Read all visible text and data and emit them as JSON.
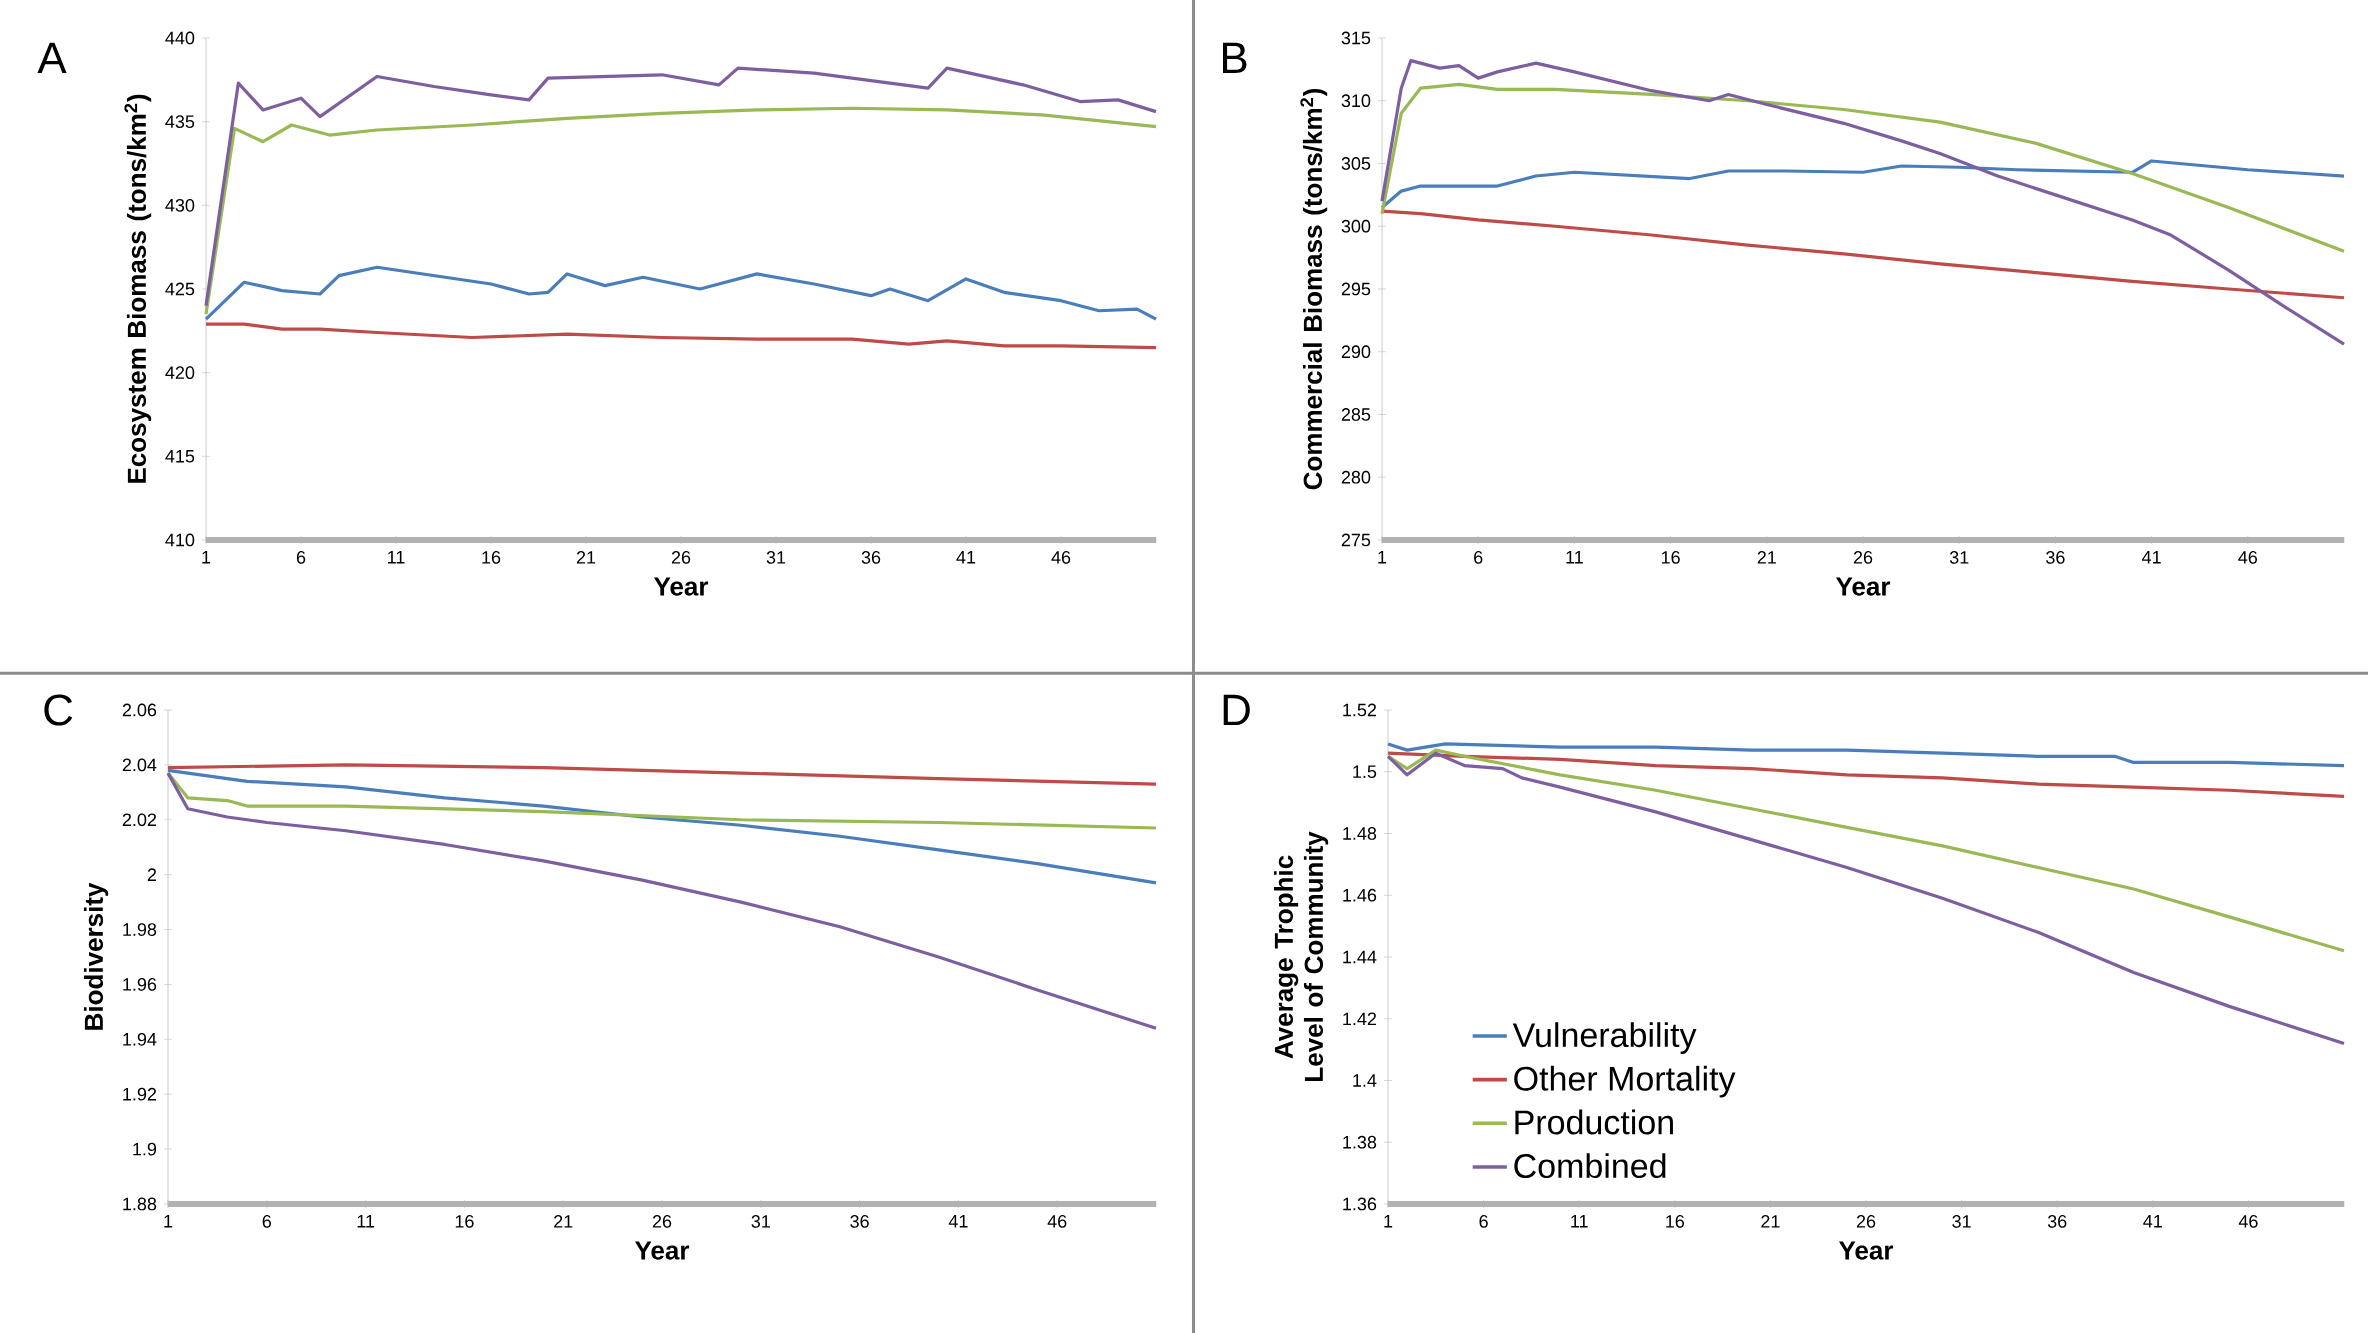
{
  "chart_data": [
    {
      "type": "line",
      "ylabel": "Ecosystem Biomass (tons/km$^{2}$)",
      "xlabel": "Year",
      "annotations": [
        "A"
      ],
      "xlim": [
        1,
        51
      ],
      "xticks": [
        1,
        6,
        11,
        16,
        21,
        26,
        31,
        36,
        41,
        46
      ],
      "ylim": [
        410,
        440
      ],
      "yticks": [
        410,
        415,
        420,
        425,
        430,
        435,
        440
      ],
      "grid": false,
      "legend": false,
      "series": [
        {
          "color": "#4a7ebb",
          "x": [
            1,
            3,
            5,
            7,
            8,
            10,
            13,
            16,
            18,
            19,
            20,
            22,
            24,
            27,
            30,
            33,
            36,
            37,
            39,
            41,
            43,
            46,
            48,
            50,
            51
          ],
          "values": [
            423.2,
            425.4,
            424.9,
            424.7,
            425.8,
            426.3,
            425.8,
            425.3,
            424.7,
            424.8,
            425.9,
            425.2,
            425.7,
            425.0,
            425.9,
            425.3,
            424.6,
            425.0,
            424.3,
            425.6,
            424.8,
            424.3,
            423.7,
            423.8,
            423.2
          ]
        },
        {
          "color": "#be4b48",
          "x": [
            1,
            3,
            5,
            7,
            10,
            15,
            20,
            25,
            30,
            35,
            38,
            40,
            43,
            46,
            51
          ],
          "values": [
            422.9,
            422.9,
            422.6,
            422.6,
            422.4,
            422.1,
            422.3,
            422.1,
            422.0,
            422.0,
            421.7,
            421.9,
            421.6,
            421.6,
            421.5
          ]
        },
        {
          "color": "#98b954",
          "x": [
            1,
            2.5,
            4,
            5.5,
            7.5,
            10,
            15,
            20,
            25,
            30,
            35,
            40,
            45,
            51
          ],
          "values": [
            423.5,
            434.6,
            433.8,
            434.8,
            434.2,
            434.5,
            434.8,
            435.2,
            435.5,
            435.7,
            435.8,
            435.7,
            435.4,
            434.7
          ]
        },
        {
          "color": "#7d5fa0",
          "x": [
            1,
            2.7,
            4,
            6,
            7,
            10,
            13,
            16,
            18,
            19,
            25,
            28,
            29,
            33,
            37,
            39,
            40,
            44,
            47,
            49,
            51
          ],
          "values": [
            424.0,
            437.3,
            435.7,
            436.4,
            435.3,
            437.7,
            437.1,
            436.6,
            436.3,
            437.6,
            437.8,
            437.2,
            438.2,
            437.9,
            437.3,
            437.0,
            438.2,
            437.2,
            436.2,
            436.3,
            435.6
          ]
        }
      ]
    },
    {
      "type": "line",
      "ylabel": "Commercial Biomass (tons/km$^{2}$)",
      "xlabel": "Year",
      "annotations": [
        "B"
      ],
      "xlim": [
        1,
        51
      ],
      "xticks": [
        1,
        6,
        11,
        16,
        21,
        26,
        31,
        36,
        41,
        46
      ],
      "ylim": [
        275,
        315
      ],
      "yticks": [
        275,
        280,
        285,
        290,
        295,
        300,
        305,
        310,
        315
      ],
      "grid": false,
      "legend": false,
      "series": [
        {
          "color": "#4a7ebb",
          "x": [
            1,
            2,
            3,
            7,
            9,
            11,
            17,
            19,
            22,
            26,
            28,
            31,
            34,
            40,
            41,
            46,
            49,
            51
          ],
          "values": [
            301.5,
            302.8,
            303.2,
            303.2,
            304.0,
            304.3,
            303.8,
            304.4,
            304.4,
            304.3,
            304.8,
            304.7,
            304.5,
            304.3,
            305.2,
            304.5,
            304.2,
            304.0
          ]
        },
        {
          "color": "#be4b48",
          "x": [
            1,
            3,
            6,
            10,
            15,
            20,
            25,
            30,
            35,
            40,
            45,
            51
          ],
          "values": [
            301.2,
            301.0,
            300.5,
            300.0,
            299.3,
            298.5,
            297.8,
            297.0,
            296.3,
            295.6,
            295.0,
            294.3
          ]
        },
        {
          "color": "#98b954",
          "x": [
            1,
            2,
            3,
            5,
            7,
            10,
            15,
            20,
            25,
            30,
            35,
            40,
            45,
            51
          ],
          "values": [
            301.0,
            309.0,
            311.0,
            311.3,
            310.9,
            310.9,
            310.5,
            310.0,
            309.3,
            308.3,
            306.6,
            304.2,
            301.5,
            298.0
          ]
        },
        {
          "color": "#7d5fa0",
          "x": [
            1,
            2,
            2.5,
            4,
            5,
            6,
            7,
            9,
            11,
            15,
            18,
            19,
            21,
            25,
            28,
            30,
            33,
            36,
            40,
            42,
            45,
            48,
            51
          ],
          "values": [
            302.0,
            311.0,
            313.2,
            312.6,
            312.8,
            311.8,
            312.3,
            313.0,
            312.3,
            310.8,
            310.0,
            310.5,
            309.7,
            308.2,
            306.8,
            305.8,
            304.0,
            302.5,
            300.5,
            299.3,
            296.5,
            293.5,
            290.6
          ]
        }
      ]
    },
    {
      "type": "line",
      "ylabel": "Biodiversity",
      "xlabel": "Year",
      "annotations": [
        "C"
      ],
      "xlim": [
        1,
        51
      ],
      "xticks": [
        1,
        6,
        11,
        16,
        21,
        26,
        31,
        36,
        41,
        46
      ],
      "ylim": [
        1.88,
        2.06
      ],
      "yticks": [
        1.88,
        1.9,
        1.92,
        1.94,
        1.96,
        1.98,
        2,
        2.02,
        2.04,
        2.06
      ],
      "grid": false,
      "legend": false,
      "series": [
        {
          "color": "#4a7ebb",
          "x": [
            1,
            5,
            10,
            15,
            20,
            25,
            30,
            35,
            40,
            45,
            51
          ],
          "values": [
            2.038,
            2.034,
            2.032,
            2.028,
            2.025,
            2.021,
            2.018,
            2.014,
            2.009,
            2.004,
            1.997
          ]
        },
        {
          "color": "#be4b48",
          "x": [
            1,
            10,
            20,
            30,
            40,
            51
          ],
          "values": [
            2.039,
            2.04,
            2.039,
            2.037,
            2.035,
            2.033
          ]
        },
        {
          "color": "#98b954",
          "x": [
            1,
            2,
            4,
            5,
            10,
            20,
            30,
            40,
            51
          ],
          "values": [
            2.037,
            2.028,
            2.027,
            2.025,
            2.025,
            2.023,
            2.02,
            2.019,
            2.017
          ]
        },
        {
          "color": "#7d5fa0",
          "x": [
            1,
            2,
            4,
            6,
            10,
            15,
            20,
            25,
            30,
            35,
            40,
            45,
            51
          ],
          "values": [
            2.037,
            2.024,
            2.021,
            2.019,
            2.016,
            2.011,
            2.005,
            1.998,
            1.99,
            1.981,
            1.97,
            1.958,
            1.944
          ]
        }
      ]
    },
    {
      "type": "line",
      "ylabel": "Average Trophic Level of Community",
      "xlabel": "Year",
      "annotations": [
        "D"
      ],
      "xlim": [
        1,
        51
      ],
      "xticks": [
        1,
        6,
        11,
        16,
        21,
        26,
        31,
        36,
        41,
        46
      ],
      "ylim": [
        1.36,
        1.52
      ],
      "yticks": [
        1.36,
        1.38,
        1.4,
        1.42,
        1.44,
        1.46,
        1.48,
        1.5,
        1.52
      ],
      "grid": false,
      "legend": "bottom left",
      "series": [
        {
          "name": "Vulnerability",
          "color": "#4a7ebb",
          "x": [
            1,
            2,
            4,
            10,
            15,
            20,
            25,
            30,
            35,
            39,
            40,
            45,
            51
          ],
          "values": [
            1.509,
            1.507,
            1.509,
            1.508,
            1.508,
            1.507,
            1.507,
            1.506,
            1.505,
            1.505,
            1.503,
            1.503,
            1.502
          ]
        },
        {
          "name": "Other Mortality",
          "color": "#be4b48",
          "x": [
            1,
            5,
            10,
            15,
            20,
            25,
            30,
            35,
            40,
            45,
            51
          ],
          "values": [
            1.506,
            1.505,
            1.504,
            1.502,
            1.501,
            1.499,
            1.498,
            1.496,
            1.495,
            1.494,
            1.492
          ]
        },
        {
          "name": "Production",
          "color": "#98b954",
          "x": [
            1,
            2,
            3.5,
            5,
            10,
            15,
            20,
            25,
            30,
            35,
            40,
            45,
            51
          ],
          "values": [
            1.505,
            1.501,
            1.507,
            1.505,
            1.499,
            1.494,
            1.488,
            1.482,
            1.476,
            1.469,
            1.462,
            1.453,
            1.442
          ]
        },
        {
          "name": "Combined",
          "color": "#7d5fa0",
          "x": [
            1,
            2,
            3.5,
            5,
            7,
            8,
            10,
            15,
            20,
            25,
            30,
            35,
            40,
            45,
            51
          ],
          "values": [
            1.505,
            1.499,
            1.506,
            1.502,
            1.501,
            1.498,
            1.495,
            1.487,
            1.478,
            1.469,
            1.459,
            1.448,
            1.435,
            1.424,
            1.412
          ]
        }
      ]
    }
  ]
}
